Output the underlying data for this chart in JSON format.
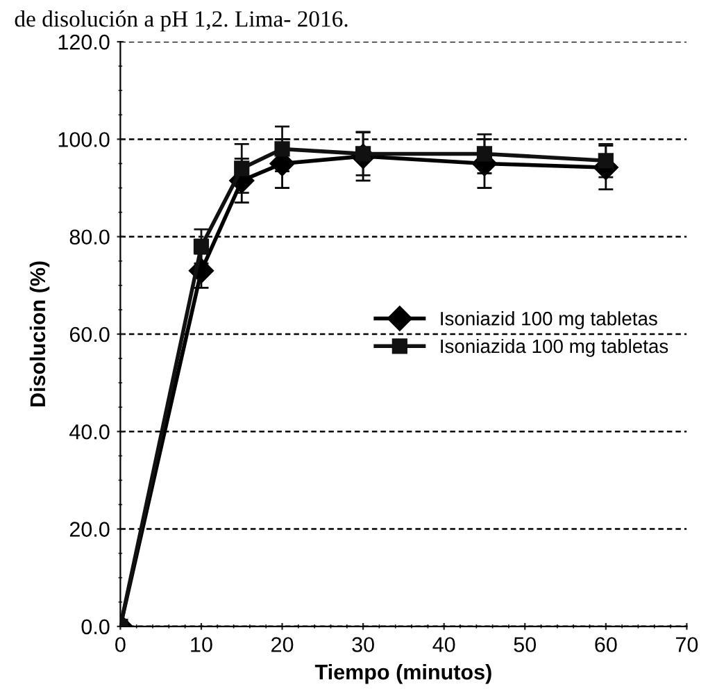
{
  "chart_data": {
    "type": "line",
    "title": "de disolución a pH 1,2. Lima- 2016.",
    "xlabel": "Tiempo (minutos)",
    "ylabel": "Disolucion (%)",
    "x": [
      0,
      10,
      15,
      20,
      30,
      45,
      60
    ],
    "series": [
      {
        "name": "Isoniazid 100 mg tabletas",
        "color": "#000000",
        "marker": "diamond",
        "values": [
          0,
          73,
          91.5,
          95,
          96.5,
          95,
          94.2
        ],
        "errors": [
          null,
          3.5,
          4.5,
          5,
          5,
          5,
          4.5
        ]
      },
      {
        "name": "Isoniazida 100 mg tabletas",
        "color": "#111111",
        "marker": "square",
        "values": [
          0,
          78,
          94,
          98,
          97,
          97,
          95.6
        ],
        "errors": [
          null,
          3.5,
          5,
          4.6,
          4.4,
          4,
          3.4
        ]
      }
    ],
    "xlim": [
      0,
      70
    ],
    "xticks": [
      0,
      10,
      20,
      30,
      40,
      50,
      60,
      70
    ],
    "ylim": [
      0,
      120
    ],
    "yticks": [
      {
        "value": 0,
        "label": "0.0"
      },
      {
        "value": 20,
        "label": "20.0"
      },
      {
        "value": 40,
        "label": "40.0"
      },
      {
        "value": 60,
        "label": "60.0"
      },
      {
        "value": 80,
        "label": "80.0"
      },
      {
        "value": 100,
        "label": "100.0"
      },
      {
        "value": 120,
        "label": "120.0"
      }
    ],
    "grid": "y",
    "legend": "right",
    "line_style": "solid"
  }
}
